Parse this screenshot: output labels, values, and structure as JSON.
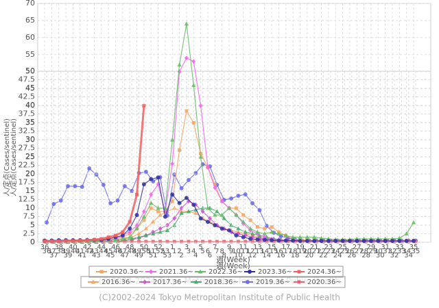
{
  "chart_data": [
    {
      "type": "line",
      "x_label": "週(Week)",
      "y_label": "人/定点(Cases/sentinel)",
      "source": "(C)2002-2024 Tokyo Metropolitan Institute of Public Health",
      "categories": [
        "36",
        "37",
        "38",
        "39",
        "40",
        "41",
        "42",
        "43",
        "44",
        "45",
        "46",
        "47",
        "48",
        "49",
        "50",
        "51",
        "52",
        "53",
        "1",
        "2",
        "3",
        "4",
        "5",
        "6",
        "7",
        "8",
        "9",
        "10",
        "11",
        "12",
        "13",
        "14",
        "15",
        "16",
        "17",
        "18",
        "19",
        "20",
        "21",
        "22",
        "23",
        "24",
        "25",
        "26",
        "27",
        "28",
        "29",
        "30",
        "31",
        "32",
        "33",
        "34",
        "35"
      ],
      "ylim": [
        0,
        70
      ],
      "yticks": [
        0,
        5,
        10,
        15,
        20,
        25,
        30,
        35,
        40,
        45,
        50,
        55,
        60,
        65,
        70
      ],
      "grid": true,
      "series": [
        {
          "name": "2020.36~",
          "color": "#f4a460",
          "marker": "square",
          "values": [
            0.5,
            0.5,
            0.5,
            0.6,
            0.6,
            0.6,
            0.6,
            0.7,
            0.8,
            0.9,
            1,
            1.5,
            2.5,
            4,
            6.5,
            10,
            9,
            9,
            12,
            27,
            38.5,
            35,
            26,
            22,
            17,
            12,
            10,
            10,
            8,
            6.5,
            4.5,
            4,
            4.5,
            3,
            2,
            1,
            0.8,
            0.6,
            0.5,
            0.5,
            0.5,
            0.5,
            0.5,
            0.5,
            0.5,
            0.5,
            0.5,
            0.5,
            0.5,
            0.5,
            0.5,
            0.5,
            0.5
          ]
        },
        {
          "name": "2021.36~",
          "color": "#ee66ee",
          "marker": "diamond",
          "values": [
            0.3,
            0.3,
            0.3,
            0.3,
            0.4,
            0.4,
            0.4,
            0.4,
            0.5,
            0.5,
            1,
            2,
            3,
            5,
            9,
            14,
            17,
            9,
            23,
            50,
            54,
            53,
            40,
            22,
            16,
            12,
            10,
            8,
            5.5,
            3.5,
            2.5,
            1.5,
            1,
            0.8,
            0.6,
            0.5,
            0.4,
            0.4,
            0.4,
            0.4,
            0.4,
            0.4,
            0.4,
            0.4,
            0.4,
            0.4,
            0.4,
            0.4,
            0.4,
            0.4,
            0.4,
            0.4,
            0.4
          ]
        },
        {
          "name": "2022.36~",
          "color": "#66bb66",
          "marker": "triangle",
          "values": [
            0.2,
            0.2,
            0.2,
            0.2,
            0.3,
            0.3,
            0.3,
            0.3,
            0.4,
            0.5,
            0.7,
            1,
            1.5,
            4,
            7.5,
            11.5,
            10,
            10,
            30,
            52,
            64,
            46,
            25,
            10,
            8,
            8,
            10,
            8,
            6,
            4,
            3,
            2.5,
            3,
            2.5,
            2,
            1.5,
            1.5,
            1.5,
            1.5,
            1.2,
            1,
            0.8,
            0.8,
            0.8,
            1,
            1,
            1,
            1,
            1,
            1,
            1.2,
            2.5,
            5.8
          ]
        },
        {
          "name": "2023.36~",
          "color": "#3030a0",
          "marker": "circle",
          "values": [
            0.5,
            0.5,
            0.6,
            0.6,
            0.6,
            0.6,
            0.7,
            0.7,
            0.7,
            1,
            1.5,
            2,
            4,
            8,
            17,
            18.5,
            19,
            7.5,
            14,
            11.5,
            13,
            11,
            7,
            6,
            5,
            4,
            3.5,
            2,
            1.5,
            1,
            0.8,
            0.7,
            0.6,
            0.5,
            0.5,
            0.5,
            0.4,
            0.4,
            0.4,
            0.4,
            0.4,
            0.4,
            0.4,
            0.4,
            0.4,
            0.4,
            0.4,
            0.4,
            0.4,
            0.4,
            0.4,
            0.4,
            0.4
          ]
        },
        {
          "name": "2024.36~",
          "color": "#f06060",
          "marker": "square",
          "values": [
            0.3,
            0.3,
            0.3,
            0.4,
            0.4,
            0.5,
            0.6,
            0.8,
            1,
            1.5,
            2,
            3,
            6,
            14,
            40,
            null,
            null,
            null,
            null,
            null,
            null,
            null,
            null,
            null,
            null,
            null,
            null,
            null,
            null,
            null,
            null,
            null,
            null,
            null,
            null,
            null,
            null,
            null,
            null,
            null,
            null,
            null,
            null,
            null,
            null,
            null,
            null,
            null,
            null,
            null,
            null,
            null,
            null
          ]
        }
      ]
    },
    {
      "type": "line",
      "x_label": "週(Week)",
      "y_label": "人/定点(Cases/sentinel)",
      "source": "(C)2002-2024 Tokyo Metropolitan Institute of Public Health",
      "categories": [
        "36",
        "37",
        "38",
        "39",
        "40",
        "41",
        "42",
        "43",
        "44",
        "45",
        "46",
        "47",
        "48",
        "49",
        "50",
        "51",
        "52",
        "53",
        "1",
        "2",
        "3",
        "4",
        "5",
        "6",
        "7",
        "8",
        "9",
        "10",
        "11",
        "12",
        "13",
        "14",
        "15",
        "16",
        "17",
        "18",
        "19",
        "20",
        "21",
        "22",
        "23",
        "24",
        "25",
        "26",
        "27",
        "28",
        "29",
        "30",
        "31",
        "32",
        "33",
        "34",
        "35"
      ],
      "ylim": [
        0,
        50
      ],
      "yticks": [
        0,
        2.5,
        5,
        7.5,
        10,
        12.5,
        15,
        17.5,
        20,
        22.5,
        25,
        27.5,
        30,
        32.5,
        35,
        37.5,
        40,
        42.5,
        45,
        47.5,
        50
      ],
      "grid": true,
      "series": [
        {
          "name": "2016.36~",
          "color": "#f4a460",
          "marker": "triangle",
          "values": [
            0.2,
            0.2,
            0.2,
            0.3,
            0.3,
            0.3,
            0.4,
            0.4,
            0.5,
            0.6,
            0.8,
            1,
            1.5,
            2.5,
            4,
            6,
            8,
            9,
            10,
            9,
            9,
            8.5,
            7,
            6,
            5,
            4,
            3.5,
            3,
            2.5,
            2,
            1.5,
            1,
            0.8,
            0.6,
            0.5,
            0.4,
            0.3,
            0.3,
            0.3,
            0.3,
            0.3,
            0.3,
            0.3,
            0.3,
            0.3,
            0.3,
            0.3,
            0.3,
            0.3,
            0.3,
            0.3,
            0.3,
            0.3
          ]
        },
        {
          "name": "2017.36~",
          "color": "#d050d0",
          "marker": "diamond",
          "values": [
            0.2,
            0.2,
            0.2,
            0.2,
            0.2,
            0.2,
            0.2,
            0.2,
            0.2,
            0.2,
            0.3,
            0.5,
            0.8,
            1.2,
            2,
            3,
            4,
            5,
            7,
            10,
            12,
            11,
            9,
            7,
            5,
            4,
            3,
            2.5,
            2,
            1.5,
            1.2,
            1,
            0.8,
            0.6,
            0.5,
            0.4,
            0.3,
            0.3,
            0.3,
            0.3,
            0.3,
            0.3,
            0.3,
            0.3,
            0.3,
            0.3,
            0.3,
            0.3,
            0.3,
            0.3,
            0.3,
            0.3,
            0.3
          ]
        },
        {
          "name": "2018.36~",
          "color": "#44aa66",
          "marker": "triangle",
          "values": [
            0.1,
            0.1,
            0.1,
            0.1,
            0.1,
            0.1,
            0.1,
            0.1,
            0.1,
            0.1,
            0.3,
            0.5,
            1,
            1.5,
            2,
            2.5,
            3,
            3.5,
            5,
            8.5,
            9,
            9.5,
            10,
            10,
            9,
            7,
            5,
            4,
            3,
            2.5,
            2,
            1.5,
            1,
            0.8,
            0.6,
            0.5,
            0.4,
            0.4,
            0.4,
            0.4,
            0.4,
            0.4,
            0.4,
            0.4,
            0.4,
            0.4,
            0.4,
            0.4,
            0.4,
            0.4,
            0.4,
            0.4,
            0.4
          ]
        },
        {
          "name": "2019.36~",
          "color": "#6a6ae8",
          "marker": "circle",
          "values": [
            5.8,
            11.2,
            12.2,
            16.4,
            16.4,
            16.2,
            21.6,
            19.8,
            16.8,
            11.4,
            12.2,
            16.4,
            15,
            20.2,
            20.6,
            17.8,
            19,
            7.8,
            19.8,
            15.8,
            18.2,
            20.2,
            22.8,
            22.2,
            16.8,
            12.4,
            12.8,
            13.6,
            14,
            11.4,
            9.4,
            4.8,
            2.8,
            1.8,
            1.2,
            0.8,
            0.5,
            0.5,
            0.5,
            0.5,
            0.5,
            0.5,
            0.5,
            0.5,
            0.5,
            0.5,
            0.5,
            0.5,
            0.5,
            0.5,
            0.5,
            0.5,
            0.5
          ]
        },
        {
          "name": "2020.36~",
          "color": "#e06070",
          "marker": "square",
          "values": [
            0.2,
            0.2,
            0.2,
            0.2,
            0.2,
            0.2,
            0.2,
            0.2,
            0.2,
            0.2,
            0.2,
            0.2,
            0.2,
            0.2,
            0.2,
            0.2,
            0.2,
            0.2,
            0.2,
            0.2,
            0.2,
            0.2,
            0.2,
            0.2,
            0.2,
            0.2,
            0.2,
            0.2,
            0.2,
            0.2,
            0.2,
            0.2,
            0.2,
            0.2,
            0.2,
            0.2,
            0.2,
            0.2,
            0.2,
            0.2,
            0.2,
            0.2,
            0.2,
            0.2,
            0.2,
            0.2,
            0.2,
            0.2,
            0.2,
            0.2,
            0.2,
            0.2,
            0.2
          ]
        }
      ]
    }
  ]
}
